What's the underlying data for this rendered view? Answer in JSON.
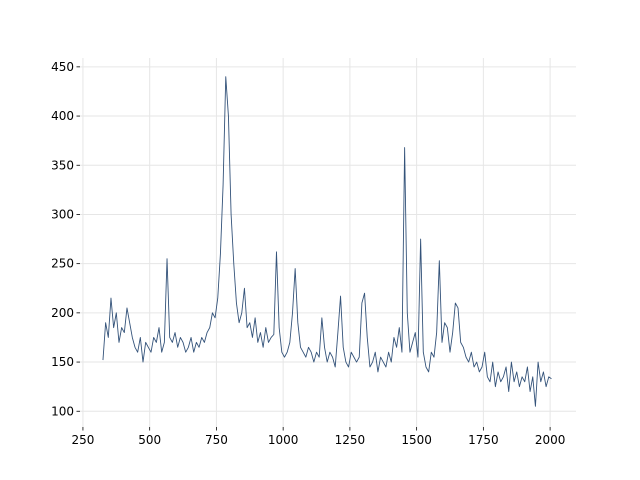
{
  "chart_data": {
    "type": "line",
    "x": [
      325,
      335,
      345,
      355,
      365,
      375,
      385,
      395,
      405,
      415,
      425,
      435,
      445,
      455,
      465,
      475,
      485,
      495,
      505,
      515,
      525,
      535,
      545,
      555,
      565,
      575,
      585,
      595,
      605,
      615,
      625,
      635,
      645,
      655,
      665,
      675,
      685,
      695,
      705,
      715,
      725,
      735,
      745,
      755,
      765,
      775,
      785,
      795,
      805,
      815,
      825,
      835,
      845,
      855,
      865,
      875,
      885,
      895,
      905,
      915,
      925,
      935,
      945,
      955,
      965,
      975,
      985,
      995,
      1005,
      1015,
      1025,
      1035,
      1045,
      1055,
      1065,
      1075,
      1085,
      1095,
      1105,
      1115,
      1125,
      1135,
      1145,
      1155,
      1165,
      1175,
      1185,
      1195,
      1205,
      1215,
      1225,
      1235,
      1245,
      1255,
      1265,
      1275,
      1285,
      1295,
      1305,
      1315,
      1325,
      1335,
      1345,
      1355,
      1365,
      1375,
      1385,
      1395,
      1405,
      1415,
      1425,
      1435,
      1445,
      1455,
      1465,
      1475,
      1485,
      1495,
      1505,
      1515,
      1525,
      1535,
      1545,
      1555,
      1565,
      1575,
      1585,
      1595,
      1605,
      1615,
      1625,
      1635,
      1645,
      1655,
      1665,
      1675,
      1685,
      1695,
      1705,
      1715,
      1725,
      1735,
      1745,
      1755,
      1765,
      1775,
      1785,
      1795,
      1805,
      1815,
      1825,
      1835,
      1845,
      1855,
      1865,
      1875,
      1885,
      1895,
      1905,
      1915,
      1925,
      1935,
      1945,
      1955,
      1965,
      1975,
      1985,
      1995,
      2005
    ],
    "series": [
      {
        "color": "#34537a",
        "values": [
          152,
          190,
          175,
          215,
          185,
          200,
          170,
          185,
          180,
          205,
          190,
          175,
          165,
          160,
          175,
          150,
          170,
          165,
          160,
          175,
          170,
          185,
          160,
          170,
          255,
          175,
          170,
          180,
          165,
          175,
          170,
          160,
          165,
          175,
          160,
          170,
          165,
          175,
          170,
          180,
          185,
          200,
          195,
          215,
          260,
          330,
          440,
          400,
          300,
          250,
          210,
          190,
          200,
          225,
          185,
          190,
          175,
          195,
          170,
          180,
          165,
          185,
          170,
          175,
          178,
          262,
          185,
          160,
          155,
          160,
          170,
          200,
          245,
          190,
          165,
          160,
          155,
          165,
          160,
          150,
          160,
          155,
          195,
          165,
          150,
          160,
          155,
          145,
          180,
          217,
          165,
          150,
          145,
          160,
          155,
          150,
          155,
          210,
          220,
          175,
          145,
          150,
          160,
          140,
          155,
          150,
          145,
          160,
          150,
          175,
          165,
          185,
          160,
          368,
          200,
          160,
          170,
          180,
          155,
          275,
          160,
          145,
          140,
          160,
          155,
          180,
          253,
          170,
          190,
          185,
          160,
          180,
          210,
          205,
          170,
          165,
          155,
          150,
          160,
          145,
          150,
          140,
          145,
          160,
          135,
          130,
          150,
          125,
          140,
          130,
          135,
          145,
          120,
          150,
          130,
          140,
          125,
          135,
          130,
          145,
          120,
          135,
          105,
          150,
          130,
          140,
          125,
          135,
          133
        ]
      }
    ],
    "xlim": [
      239,
      2097
    ],
    "ylim": [
      84,
      459
    ],
    "xticks": [
      250,
      500,
      750,
      1000,
      1250,
      1500,
      1750,
      2000
    ],
    "yticks": [
      100,
      150,
      200,
      250,
      300,
      350,
      400,
      450
    ],
    "grid": true
  }
}
